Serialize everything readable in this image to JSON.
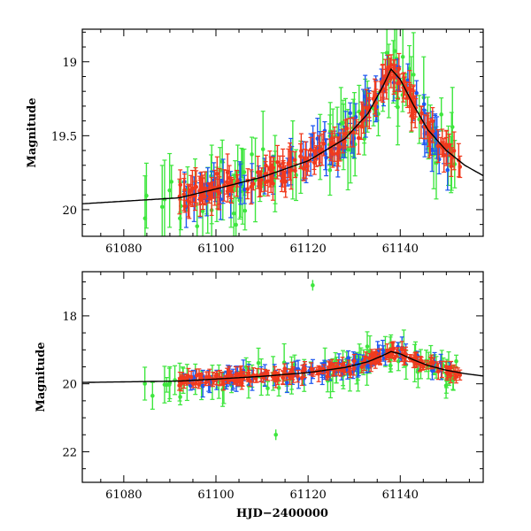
{
  "colors": {
    "frame": "#000000",
    "model_curve": "#000000",
    "series_red": "#f03a1e",
    "series_blue": "#1e58f0",
    "series_green": "#3ee63e"
  },
  "chart_data": [
    {
      "type": "scatter",
      "panel": "top",
      "title": "",
      "xlabel": "",
      "ylabel": "Magnitude",
      "xlim": [
        61071,
        61158
      ],
      "ylim": [
        20.18,
        18.78
      ],
      "y_inverted": true,
      "x_ticks": [
        "61080",
        "61100",
        "61120",
        "61140"
      ],
      "y_ticks": [
        "19",
        "19.5",
        "20"
      ],
      "series": [
        {
          "name": "red",
          "color": "#f03a1e",
          "x_range": [
            61092,
            61153
          ],
          "typical_error": 0.08
        },
        {
          "name": "blue",
          "color": "#1e58f0",
          "x_range": [
            61093,
            61152
          ],
          "typical_error": 0.1
        },
        {
          "name": "green",
          "color": "#3ee63e",
          "x_range": [
            61084,
            61153
          ],
          "typical_error": 0.18
        }
      ],
      "model_curve": {
        "x": [
          61071,
          61092,
          61100,
          61110,
          61120,
          61128,
          61133,
          61136,
          61138,
          61140,
          61143,
          61146,
          61150,
          61154,
          61158
        ],
        "y": [
          19.96,
          19.92,
          19.86,
          19.78,
          19.67,
          19.52,
          19.35,
          19.18,
          19.05,
          19.12,
          19.3,
          19.46,
          19.6,
          19.7,
          19.77
        ]
      }
    },
    {
      "type": "scatter",
      "panel": "bottom",
      "title": "",
      "xlabel": "HJD−2400000",
      "ylabel": "Magnitude",
      "xlim": [
        61071,
        61158
      ],
      "ylim": [
        22.9,
        16.7
      ],
      "y_inverted": true,
      "x_ticks": [
        "61080",
        "61100",
        "61120",
        "61140"
      ],
      "y_ticks": [
        "18",
        "20",
        "22"
      ],
      "series": [
        {
          "name": "red",
          "color": "#f03a1e",
          "x_range": [
            61092,
            61153
          ],
          "typical_error": 0.15
        },
        {
          "name": "blue",
          "color": "#1e58f0",
          "x_range": [
            61093,
            61152
          ],
          "typical_error": 0.2
        },
        {
          "name": "green",
          "color": "#3ee63e",
          "x_range": [
            61084,
            61153
          ],
          "typical_error": 0.35
        }
      ],
      "outlier_points": [
        {
          "x": 61121,
          "y": 17.1,
          "series": "green"
        },
        {
          "x": 61113,
          "y": 21.5,
          "series": "green"
        }
      ],
      "model_curve": {
        "x": [
          61071,
          61092,
          61100,
          61110,
          61120,
          61128,
          61133,
          61136,
          61138,
          61140,
          61143,
          61146,
          61150,
          61154,
          61158
        ],
        "y": [
          19.96,
          19.92,
          19.86,
          19.78,
          19.67,
          19.52,
          19.35,
          19.18,
          19.05,
          19.12,
          19.3,
          19.46,
          19.6,
          19.7,
          19.77
        ]
      }
    }
  ]
}
